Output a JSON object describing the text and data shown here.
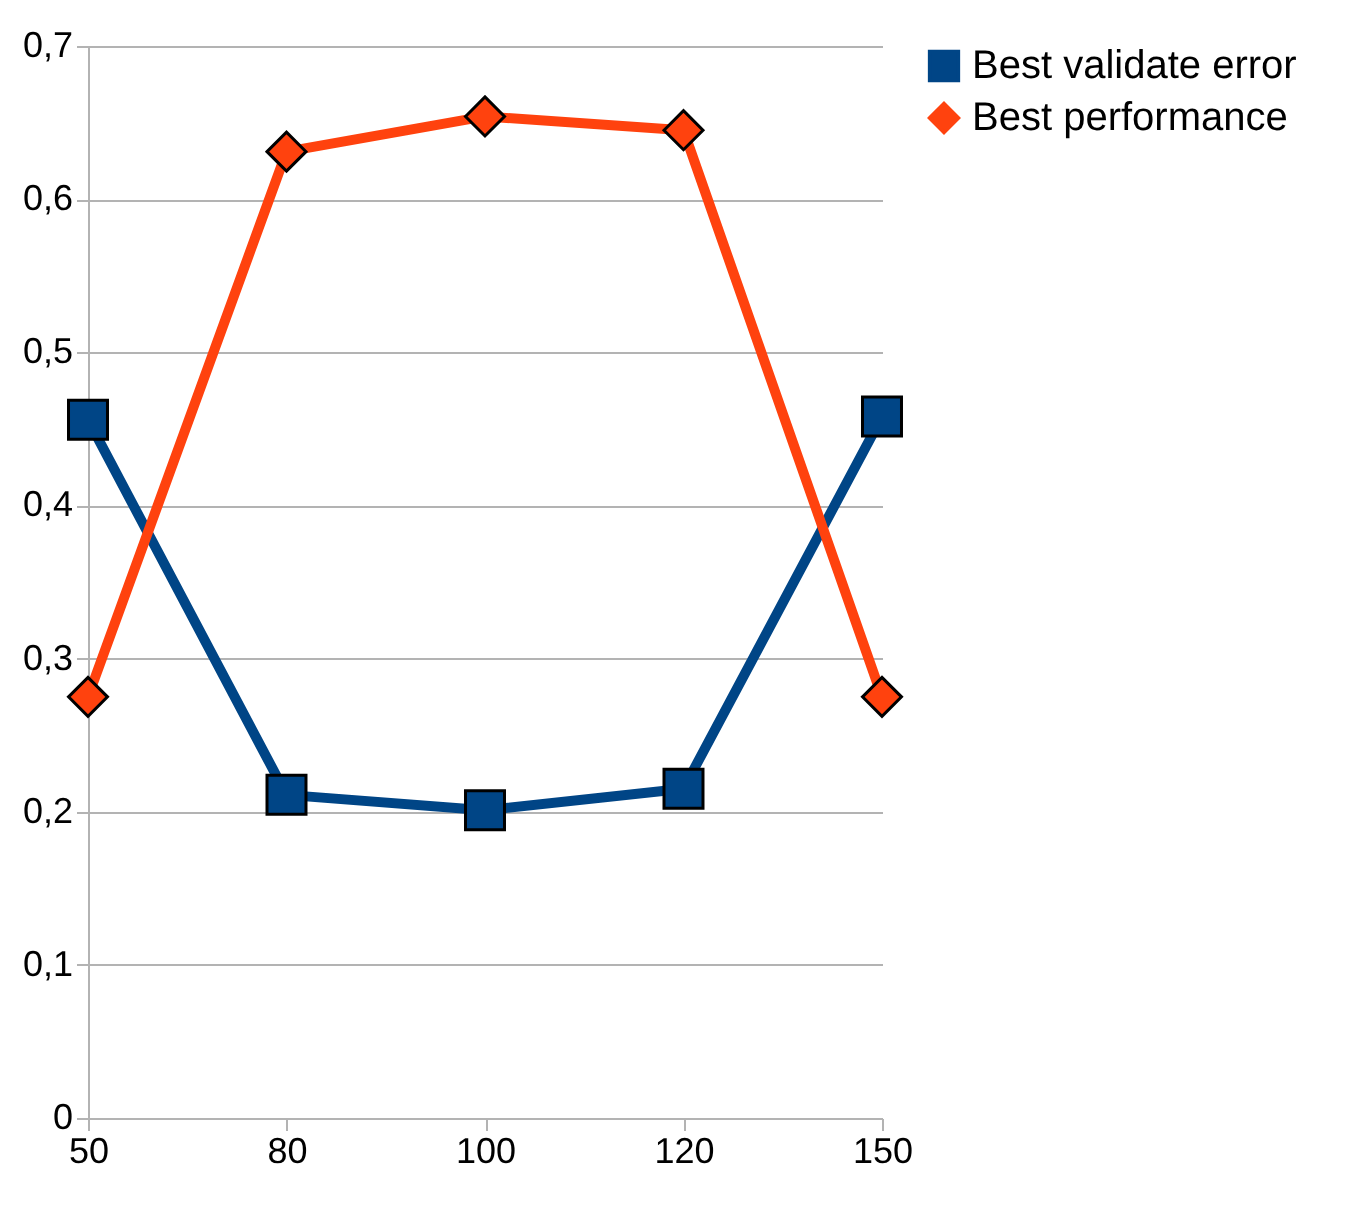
{
  "chart_data": {
    "type": "line",
    "categories": [
      "50",
      "80",
      "100",
      "120",
      "150"
    ],
    "series": [
      {
        "name": "Best validate error",
        "color": "#004586",
        "marker": "square",
        "values": [
          0.456,
          0.211,
          0.201,
          0.215,
          0.458
        ]
      },
      {
        "name": "Best performance",
        "color": "#ff420e",
        "marker": "diamond",
        "values": [
          0.275,
          0.631,
          0.654,
          0.645,
          0.275
        ]
      }
    ],
    "ylim": [
      0,
      0.7
    ],
    "yticks": [
      {
        "value": 0,
        "label": "0"
      },
      {
        "value": 0.1,
        "label": "0,1"
      },
      {
        "value": 0.2,
        "label": "0,2"
      },
      {
        "value": 0.3,
        "label": "0,3"
      },
      {
        "value": 0.4,
        "label": "0,4"
      },
      {
        "value": 0.5,
        "label": "0,5"
      },
      {
        "value": 0.6,
        "label": "0,6"
      },
      {
        "value": 0.7,
        "label": "0,7"
      }
    ],
    "grid": "y",
    "legend": "right",
    "line_style": "solid"
  }
}
